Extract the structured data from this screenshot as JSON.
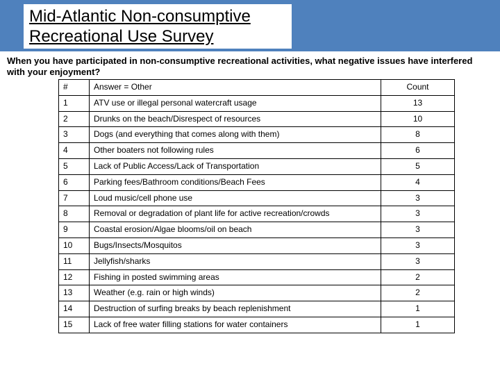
{
  "header": {
    "title_line1": "Mid-Atlantic Non-consumptive",
    "title_line2": "Recreational Use Survey"
  },
  "question": "When you have participated in non-consumptive recreational activities, what negative issues have interfered with your enjoyment?",
  "table": {
    "columns": {
      "num": "#",
      "answer": "Answer = Other",
      "count": "Count"
    },
    "col_widths": {
      "num": 44,
      "answer": 420,
      "count": 106
    },
    "font_size": 12,
    "border_color": "#000000",
    "rows": [
      {
        "n": "1",
        "answer": "ATV use or illegal personal watercraft usage",
        "count": "13"
      },
      {
        "n": "2",
        "answer": "Drunks on the beach/Disrespect of resources",
        "count": "10"
      },
      {
        "n": "3",
        "answer": "Dogs (and everything that comes along with them)",
        "count": "8"
      },
      {
        "n": "4",
        "answer": "Other boaters not following rules",
        "count": "6"
      },
      {
        "n": "5",
        "answer": "Lack of Public Access/Lack of Transportation",
        "count": "5"
      },
      {
        "n": "6",
        "answer": "Parking fees/Bathroom conditions/Beach Fees",
        "count": "4"
      },
      {
        "n": "7",
        "answer": "Loud music/cell phone use",
        "count": "3"
      },
      {
        "n": "8",
        "answer": "Removal or degradation of plant life for active recreation/crowds",
        "count": "3"
      },
      {
        "n": "9",
        "answer": "Coastal erosion/Algae blooms/oil on beach",
        "count": "3"
      },
      {
        "n": "10",
        "answer": "Bugs/Insects/Mosquitos",
        "count": "3"
      },
      {
        "n": "11",
        "answer": "Jellyfish/sharks",
        "count": "3"
      },
      {
        "n": "12",
        "answer": "Fishing in posted swimming areas",
        "count": "2"
      },
      {
        "n": "13",
        "answer": "Weather (e.g. rain or high winds)",
        "count": "2"
      },
      {
        "n": "14",
        "answer": "Destruction of surfing breaks by beach replenishment",
        "count": "1"
      },
      {
        "n": "15",
        "answer": "Lack of free water filling stations for water containers",
        "count": "1"
      }
    ]
  },
  "colors": {
    "header_bg": "#4f81bd",
    "page_bg": "#ffffff",
    "text": "#000000"
  }
}
